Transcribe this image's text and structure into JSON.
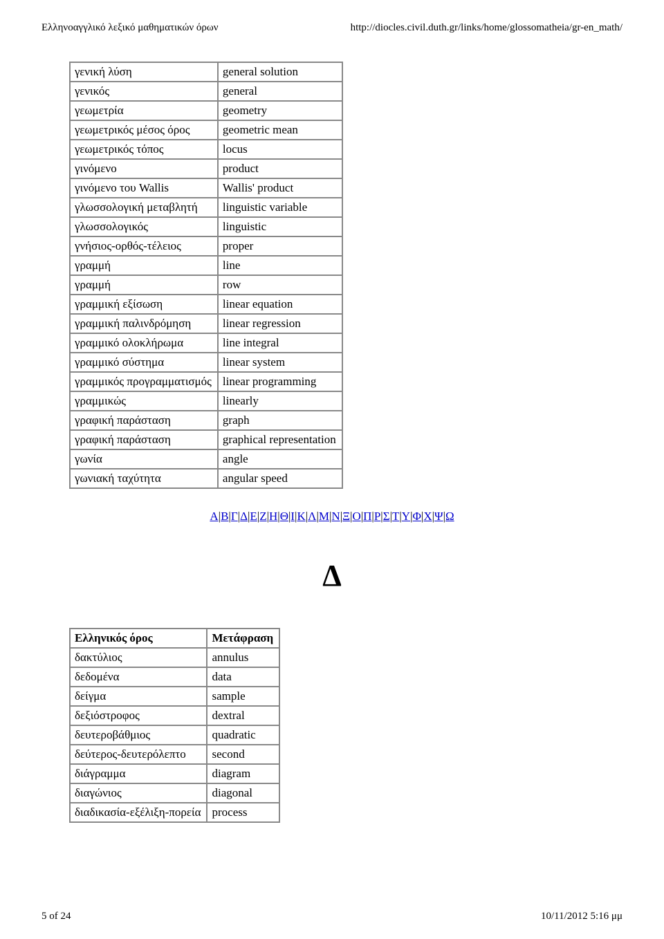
{
  "header": {
    "left": "Ελληνοαγγλικό λεξικό μαθηματικών όρων",
    "right": "http://diocles.civil.duth.gr/links/home/glossomatheia/gr-en_math/"
  },
  "table1": {
    "rows": [
      [
        "γενική λύση",
        "general solution"
      ],
      [
        "γενικός",
        "general"
      ],
      [
        "γεωμετρία",
        "geometry"
      ],
      [
        "γεωμετρικός μέσος όρος",
        "geometric mean"
      ],
      [
        "γεωμετρικός τόπος",
        "locus"
      ],
      [
        "γινόμενο",
        "product"
      ],
      [
        "γινόμενο του Wallis",
        "Wallis' product"
      ],
      [
        "γλωσσολογική μεταβλητή",
        "linguistic variable"
      ],
      [
        "γλωσσολογικός",
        "linguistic"
      ],
      [
        "γνήσιος-ορθός-τέλειος",
        "proper"
      ],
      [
        "γραμμή",
        "line"
      ],
      [
        "γραμμή",
        "row"
      ],
      [
        "γραμμική εξίσωση",
        "linear equation"
      ],
      [
        "γραμμική παλινδρόμηση",
        "linear regression"
      ],
      [
        "γραμμικό ολοκλήρωμα",
        "line integral"
      ],
      [
        "γραμμικό σύστημα",
        "linear system"
      ],
      [
        "γραμμικός προγραμματισμός",
        "linear programming"
      ],
      [
        "γραμμικώς",
        "linearly"
      ],
      [
        "γραφική παράσταση",
        "graph"
      ],
      [
        "γραφική παράσταση",
        "graphical representation"
      ],
      [
        "γωνία",
        "angle"
      ],
      [
        "γωνιακή ταχύτητα",
        "angular speed"
      ]
    ]
  },
  "alphabet": [
    "Α",
    "Β",
    "Γ",
    "Δ",
    "Ε",
    "Ζ",
    "Η",
    "Θ",
    "Ι",
    "Κ",
    "Λ",
    "Μ",
    "Ν",
    "Ξ",
    "Ο",
    "Π",
    "Ρ",
    "Σ",
    "Τ",
    "Υ",
    "Φ",
    "Χ",
    "Ψ",
    "Ω"
  ],
  "section_letter": "Δ",
  "table2": {
    "header": [
      "Ελληνικός όρος",
      "Μετάφραση"
    ],
    "rows": [
      [
        "δακτύλιος",
        "annulus"
      ],
      [
        "δεδομένα",
        "data"
      ],
      [
        "δείγμα",
        "sample"
      ],
      [
        "δεξιόστροφος",
        "dextral"
      ],
      [
        "δευτεροβάθμιος",
        "quadratic"
      ],
      [
        "δεύτερος-δευτερόλεπτο",
        "second"
      ],
      [
        "διάγραμμα",
        "diagram"
      ],
      [
        "διαγώνιος",
        "diagonal"
      ],
      [
        "διαδικασία-εξέλιξη-πορεία",
        "process"
      ]
    ]
  },
  "footer": {
    "left": "5 of 24",
    "right": "10/11/2012 5:16 μμ"
  }
}
